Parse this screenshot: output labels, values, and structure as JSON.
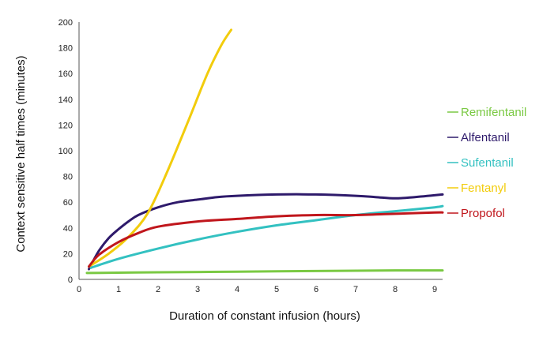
{
  "chart_data": {
    "type": "line",
    "title": "",
    "xlabel": "Duration of constant infusion (hours)",
    "ylabel": "Context sensitive half times (minutes)",
    "xlim": [
      0,
      9.2
    ],
    "ylim": [
      0,
      200
    ],
    "x_ticks": [
      0,
      1,
      2,
      3,
      4,
      5,
      6,
      7,
      8,
      9
    ],
    "y_ticks": [
      0,
      20,
      40,
      60,
      80,
      100,
      120,
      140,
      160,
      180,
      200
    ],
    "grid": false,
    "legend_position": "right",
    "series": [
      {
        "name": "Remifentanil",
        "color": "#7ac943",
        "points": [
          [
            0.2,
            5
          ],
          [
            2,
            5.5
          ],
          [
            4,
            6
          ],
          [
            6,
            6.5
          ],
          [
            8,
            7
          ],
          [
            9.2,
            7
          ]
        ]
      },
      {
        "name": "Alfentanil",
        "color": "#2e1a6b",
        "points": [
          [
            0.25,
            8
          ],
          [
            0.5,
            22
          ],
          [
            0.75,
            32
          ],
          [
            1,
            39
          ],
          [
            1.25,
            45
          ],
          [
            1.5,
            50
          ],
          [
            2,
            56
          ],
          [
            2.5,
            60
          ],
          [
            3,
            62
          ],
          [
            3.5,
            64
          ],
          [
            4,
            65
          ],
          [
            5,
            66
          ],
          [
            6,
            66
          ],
          [
            7,
            65
          ],
          [
            7.5,
            64
          ],
          [
            8,
            63
          ],
          [
            8.5,
            64
          ],
          [
            9.2,
            66
          ]
        ]
      },
      {
        "name": "Sufentanil",
        "color": "#33c1c1",
        "points": [
          [
            0.3,
            9
          ],
          [
            1,
            16
          ],
          [
            2,
            24
          ],
          [
            3,
            31
          ],
          [
            4,
            37
          ],
          [
            5,
            42
          ],
          [
            6,
            46
          ],
          [
            7,
            50
          ],
          [
            8,
            53
          ],
          [
            9,
            56
          ],
          [
            9.2,
            57
          ]
        ]
      },
      {
        "name": "Fentanyl",
        "color": "#f2cc0c",
        "points": [
          [
            0.25,
            10
          ],
          [
            0.75,
            20
          ],
          [
            1.25,
            33
          ],
          [
            1.75,
            52
          ],
          [
            2.25,
            85
          ],
          [
            2.75,
            122
          ],
          [
            3.25,
            160
          ],
          [
            3.6,
            182
          ],
          [
            3.85,
            194
          ]
        ]
      },
      {
        "name": "Propofol",
        "color": "#c0161c",
        "points": [
          [
            0.25,
            10
          ],
          [
            0.5,
            19
          ],
          [
            1,
            29
          ],
          [
            1.5,
            36
          ],
          [
            2,
            41
          ],
          [
            3,
            45
          ],
          [
            4,
            47
          ],
          [
            5,
            49
          ],
          [
            6,
            50
          ],
          [
            7,
            50
          ],
          [
            8,
            51
          ],
          [
            9,
            52
          ],
          [
            9.2,
            52
          ]
        ]
      }
    ]
  }
}
